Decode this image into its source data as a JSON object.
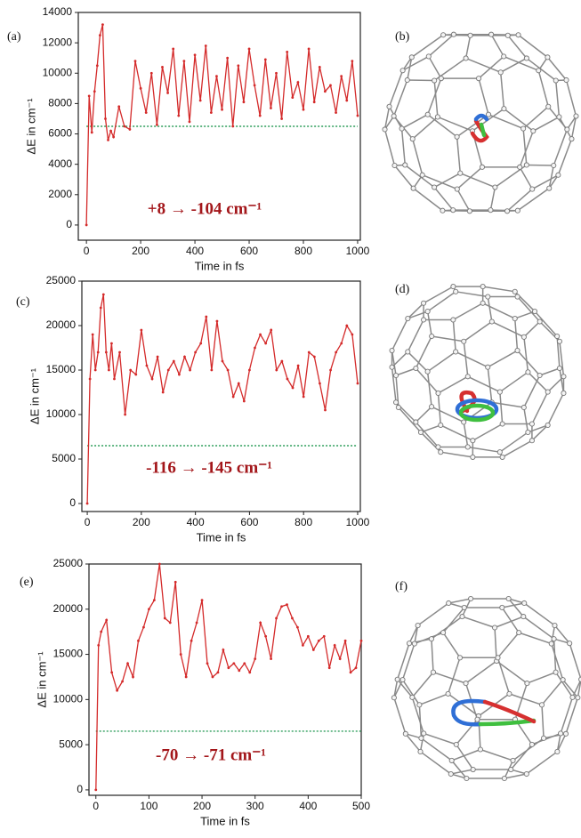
{
  "chart_data": [
    {
      "type": "line",
      "panel_label": "(a)",
      "x_label": "Time in fs",
      "y_label": "ΔE in cm⁻¹",
      "annotation": "+8 → -104 cm⁻¹",
      "x": [
        0,
        10,
        20,
        30,
        40,
        50,
        60,
        70,
        80,
        90,
        100,
        120,
        140,
        160,
        180,
        200,
        220,
        240,
        260,
        280,
        300,
        320,
        340,
        360,
        380,
        400,
        420,
        440,
        460,
        480,
        500,
        520,
        540,
        560,
        580,
        600,
        620,
        640,
        660,
        680,
        700,
        720,
        740,
        760,
        780,
        800,
        820,
        840,
        860,
        880,
        900,
        920,
        940,
        960,
        980,
        1000
      ],
      "values": [
        0,
        8500,
        6100,
        8800,
        10500,
        12500,
        13200,
        7000,
        5600,
        6200,
        5800,
        7800,
        6500,
        6300,
        10800,
        9000,
        7400,
        10000,
        6600,
        10400,
        8700,
        11600,
        7200,
        10800,
        6800,
        11200,
        8200,
        11800,
        7400,
        9800,
        7600,
        11000,
        6500,
        10500,
        8100,
        11600,
        9200,
        7200,
        10900,
        7700,
        10000,
        7000,
        11400,
        8400,
        9400,
        7600,
        11600,
        8100,
        10400,
        8800,
        9200,
        7400,
        9800,
        8200,
        10800,
        7200
      ],
      "color": "#d42a2a",
      "reference_line": {
        "value": 6500,
        "color": "#2e9e5b"
      },
      "xlim": [
        -30,
        1010
      ],
      "ylim": [
        -1000,
        14000
      ],
      "xticks": [
        0,
        200,
        400,
        600,
        800,
        1000
      ],
      "yticks": [
        0,
        2000,
        4000,
        6000,
        8000,
        10000,
        12000,
        14000
      ]
    },
    {
      "type": "line",
      "panel_label": "(c)",
      "x_label": "Time in fs",
      "y_label": "ΔE in cm⁻¹",
      "annotation": "-116 → -145 cm⁻¹",
      "x": [
        0,
        10,
        20,
        30,
        40,
        50,
        60,
        70,
        80,
        90,
        100,
        120,
        140,
        160,
        180,
        200,
        220,
        240,
        260,
        280,
        300,
        320,
        340,
        360,
        380,
        400,
        420,
        440,
        460,
        480,
        500,
        520,
        540,
        560,
        580,
        600,
        620,
        640,
        660,
        680,
        700,
        720,
        740,
        760,
        780,
        800,
        820,
        840,
        860,
        880,
        900,
        920,
        940,
        960,
        980,
        1000
      ],
      "values": [
        0,
        14000,
        19000,
        15000,
        17000,
        22000,
        23500,
        17000,
        15000,
        18000,
        14000,
        17000,
        10000,
        15000,
        14500,
        19500,
        15500,
        14000,
        16500,
        12500,
        15000,
        16000,
        14500,
        16500,
        15000,
        17000,
        18000,
        21000,
        15000,
        20500,
        16000,
        15000,
        12000,
        13500,
        11500,
        15000,
        17500,
        19000,
        18000,
        19500,
        15000,
        16000,
        14000,
        13000,
        15500,
        12000,
        17000,
        16500,
        13500,
        10500,
        15000,
        17000,
        18000,
        20000,
        19000,
        13500
      ],
      "color": "#d42a2a",
      "reference_line": {
        "value": 6500,
        "color": "#2e9e5b"
      },
      "xlim": [
        -20,
        1010
      ],
      "ylim": [
        -900,
        25000
      ],
      "xticks": [
        0,
        200,
        400,
        600,
        800,
        1000
      ],
      "yticks": [
        0,
        5000,
        10000,
        15000,
        20000,
        25000
      ]
    },
    {
      "type": "line",
      "panel_label": "(e)",
      "x_label": "Time in fs",
      "y_label": "ΔE in cm⁻¹",
      "annotation": "-70 → -71 cm⁻¹",
      "x": [
        0,
        5,
        10,
        20,
        30,
        40,
        50,
        60,
        70,
        80,
        90,
        100,
        110,
        120,
        130,
        140,
        150,
        160,
        170,
        180,
        190,
        200,
        210,
        220,
        230,
        240,
        250,
        260,
        270,
        280,
        290,
        300,
        310,
        320,
        330,
        340,
        350,
        360,
        370,
        380,
        390,
        400,
        410,
        420,
        430,
        440,
        450,
        460,
        470,
        480,
        490,
        500
      ],
      "values": [
        0,
        16000,
        17500,
        18800,
        13000,
        11000,
        12000,
        14000,
        12500,
        16500,
        18000,
        20000,
        21000,
        25000,
        19000,
        18500,
        23000,
        15000,
        12500,
        16500,
        18500,
        21000,
        14000,
        12500,
        13000,
        15500,
        13500,
        14000,
        13200,
        14000,
        13000,
        14500,
        18500,
        17000,
        14500,
        19000,
        20300,
        20500,
        19000,
        18000,
        16000,
        17000,
        15500,
        16500,
        17000,
        13500,
        16000,
        14500,
        16500,
        13000,
        13500,
        16500
      ],
      "color": "#d42a2a",
      "reference_line": {
        "value": 6500,
        "color": "#2e9e5b"
      },
      "xlim": [
        -13,
        500
      ],
      "ylim": [
        -600,
        25000
      ],
      "xticks": [
        0,
        100,
        200,
        300,
        400,
        500
      ],
      "yticks": [
        0,
        5000,
        10000,
        15000,
        20000,
        25000
      ]
    }
  ],
  "diagrams": [
    {
      "label": "(b)"
    },
    {
      "label": "(d)"
    },
    {
      "label": "(f)"
    }
  ]
}
